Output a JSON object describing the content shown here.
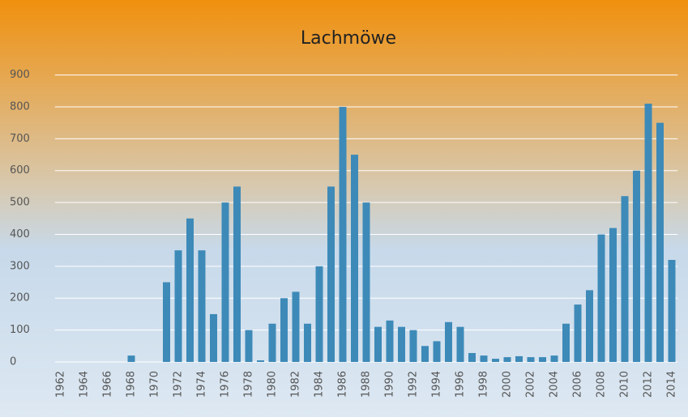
{
  "chart_data": {
    "type": "bar",
    "title": "Lachmöwe",
    "categories": [
      "1962",
      null,
      "1964",
      null,
      "1966",
      null,
      "1968",
      null,
      "1970",
      null,
      "1972",
      null,
      "1974",
      null,
      "1976",
      null,
      "1978",
      null,
      "1980",
      null,
      "1982",
      null,
      "1984",
      null,
      "1986",
      null,
      "1988",
      null,
      "1990",
      null,
      "1992",
      null,
      "1994",
      null,
      "1996",
      null,
      "1998",
      null,
      "2000",
      null,
      "2002",
      null,
      "2004",
      null,
      "2006",
      null,
      "2008",
      null,
      "2010",
      null,
      "2012",
      null,
      "2014"
    ],
    "values": [
      0,
      0,
      0,
      0,
      0,
      0,
      20,
      0,
      0,
      250,
      350,
      450,
      350,
      150,
      500,
      550,
      100,
      5,
      120,
      200,
      220,
      120,
      300,
      550,
      800,
      650,
      500,
      110,
      130,
      110,
      100,
      50,
      65,
      125,
      110,
      28,
      20,
      10,
      15,
      18,
      15,
      15,
      20,
      120,
      180,
      225,
      400,
      420,
      520,
      600,
      810,
      750,
      320
    ],
    "color": "#3d8ab8",
    "ylim": [
      0,
      900
    ],
    "yticks": [
      0,
      100,
      200,
      300,
      400,
      500,
      600,
      700,
      800,
      900
    ],
    "grid": true
  }
}
